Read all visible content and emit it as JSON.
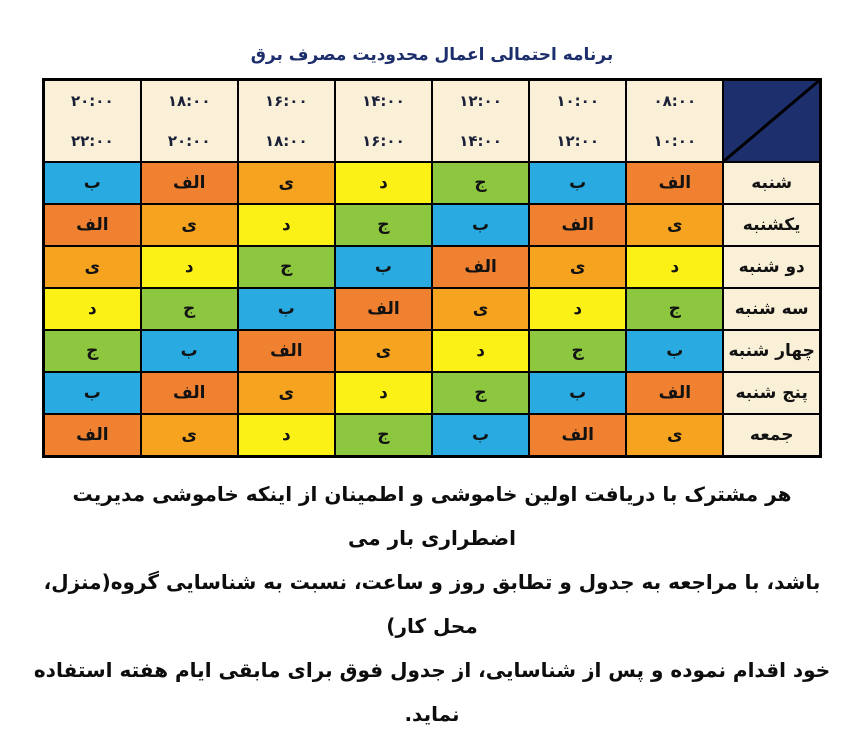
{
  "title": "برنامه احتمالی اعمال محدودیت مصرف برق",
  "table": {
    "corner_cell": {
      "color": "#1e2f6e",
      "diagonal": "top-right-to-bottom-left"
    },
    "time_columns_left_to_right": [
      {
        "start": "۲۰:۰۰",
        "end": "۲۲:۰۰"
      },
      {
        "start": "۱۸:۰۰",
        "end": "۲۰:۰۰"
      },
      {
        "start": "۱۶:۰۰",
        "end": "۱۸:۰۰"
      },
      {
        "start": "۱۴:۰۰",
        "end": "۱۶:۰۰"
      },
      {
        "start": "۱۲:۰۰",
        "end": "۱۴:۰۰"
      },
      {
        "start": "۱۰:۰۰",
        "end": "۱۲:۰۰"
      },
      {
        "start": "۰۸:۰۰",
        "end": "۱۰:۰۰"
      }
    ],
    "rows": [
      {
        "day": "شنبه",
        "cells_left_to_right": [
          "ب",
          "الف",
          "ی",
          "د",
          "ج",
          "ب",
          "الف"
        ]
      },
      {
        "day": "یکشنبه",
        "cells_left_to_right": [
          "الف",
          "ی",
          "د",
          "ج",
          "ب",
          "الف",
          "ی"
        ]
      },
      {
        "day": "دو شنبه",
        "cells_left_to_right": [
          "ی",
          "د",
          "ج",
          "ب",
          "الف",
          "ی",
          "د"
        ]
      },
      {
        "day": "سه شنبه",
        "cells_left_to_right": [
          "د",
          "ج",
          "ب",
          "الف",
          "ی",
          "د",
          "ج"
        ]
      },
      {
        "day": "چهار شنبه",
        "cells_left_to_right": [
          "ج",
          "ب",
          "الف",
          "ی",
          "د",
          "ج",
          "ب"
        ]
      },
      {
        "day": "پنج شنبه",
        "cells_left_to_right": [
          "ب",
          "الف",
          "ی",
          "د",
          "ج",
          "ب",
          "الف"
        ]
      },
      {
        "day": "جمعه",
        "cells_left_to_right": [
          "الف",
          "ی",
          "د",
          "ج",
          "ب",
          "الف",
          "ی"
        ]
      }
    ]
  },
  "group_colors": {
    "الف": "#f08130",
    "ب": "#29abe2",
    "ج": "#8dc63f",
    "د": "#fbf116",
    "ی": "#f6a41f"
  },
  "header_bg": "#f9f0d7",
  "title_color": "#1c2e6b",
  "footer": {
    "lines": [
      "هر مشترک با دریافت اولین خاموشی و اطمینان از اینکه خاموشی مدیریت اضطراری بار می",
      "باشد، با مراجعه به جدول و تطابق روز و ساعت، نسبت به شناسایی گروه(منزل، محل کار)",
      "خود اقدام نموده و پس از شناسایی، از جدول فوق برای مابقی ایام هفته استفاده نماید."
    ]
  }
}
